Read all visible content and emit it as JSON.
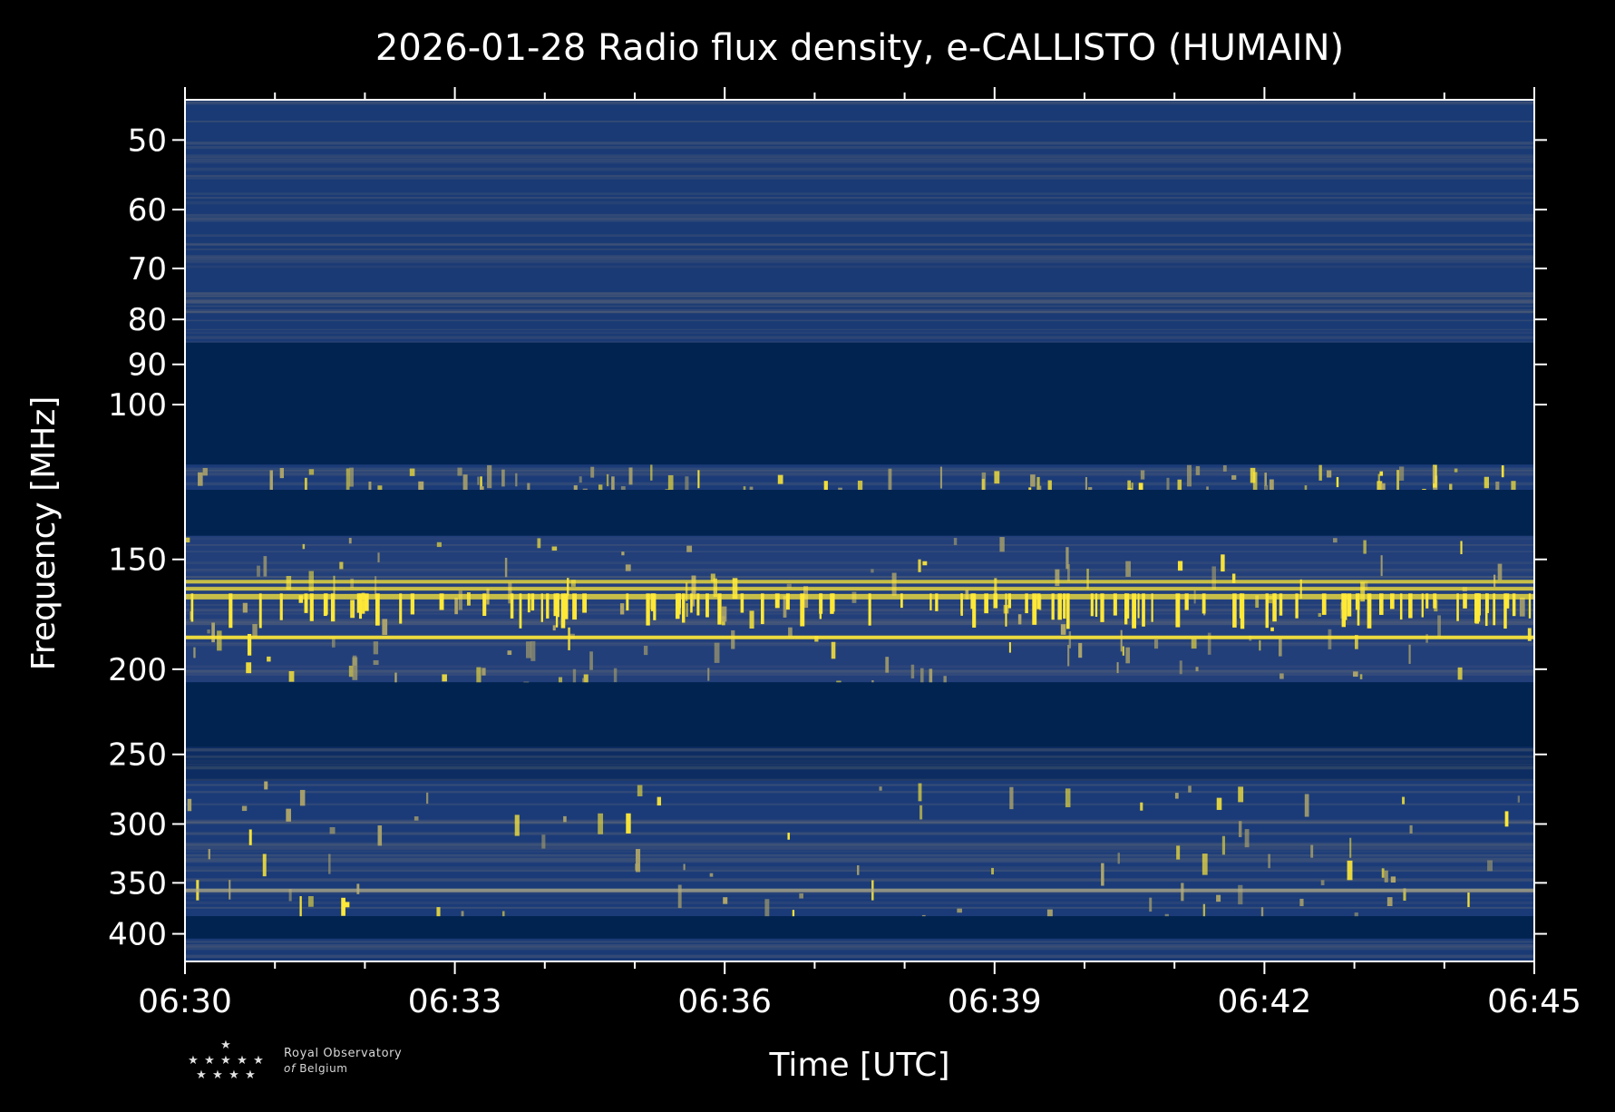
{
  "chart_data": {
    "type": "heatmap",
    "title": "2026-01-28 Radio flux density, e-CALLISTO (HUMAIN)",
    "xlabel": "Time [UTC]",
    "ylabel": "Frequency [MHz]",
    "x_ticks": [
      "06:30",
      "06:33",
      "06:36",
      "06:39",
      "06:42",
      "06:45"
    ],
    "x_range": [
      "06:30",
      "06:45"
    ],
    "y_scale": "log",
    "y_ticks": [
      50,
      60,
      70,
      80,
      90,
      100,
      150,
      200,
      250,
      300,
      350,
      400
    ],
    "y_range": [
      45,
      430
    ],
    "colormap": "cividis",
    "colors": {
      "low": "#00224e",
      "mid": "#7c7b78",
      "high": "#fee838",
      "background": "#000000"
    },
    "bands": [
      {
        "from": 45,
        "to": 85,
        "level": "moderate"
      },
      {
        "from": 85,
        "to": 117,
        "level": "low"
      },
      {
        "from": 117,
        "to": 125,
        "level": "moderate-bursty"
      },
      {
        "from": 125,
        "to": 141,
        "level": "low"
      },
      {
        "from": 141,
        "to": 207,
        "level": "strong-bursty"
      },
      {
        "from": 207,
        "to": 245,
        "level": "low"
      },
      {
        "from": 245,
        "to": 268,
        "level": "low-moderate"
      },
      {
        "from": 268,
        "to": 382,
        "level": "moderate-bursty"
      },
      {
        "from": 382,
        "to": 405,
        "level": "low"
      },
      {
        "from": 405,
        "to": 430,
        "level": "moderate"
      }
    ],
    "strong_lines_mhz": [
      159,
      162,
      165,
      184,
      357
    ]
  },
  "logo": {
    "line1": "Royal Observatory",
    "line2_prefix": "of",
    "line2_rest": "Belgium"
  }
}
